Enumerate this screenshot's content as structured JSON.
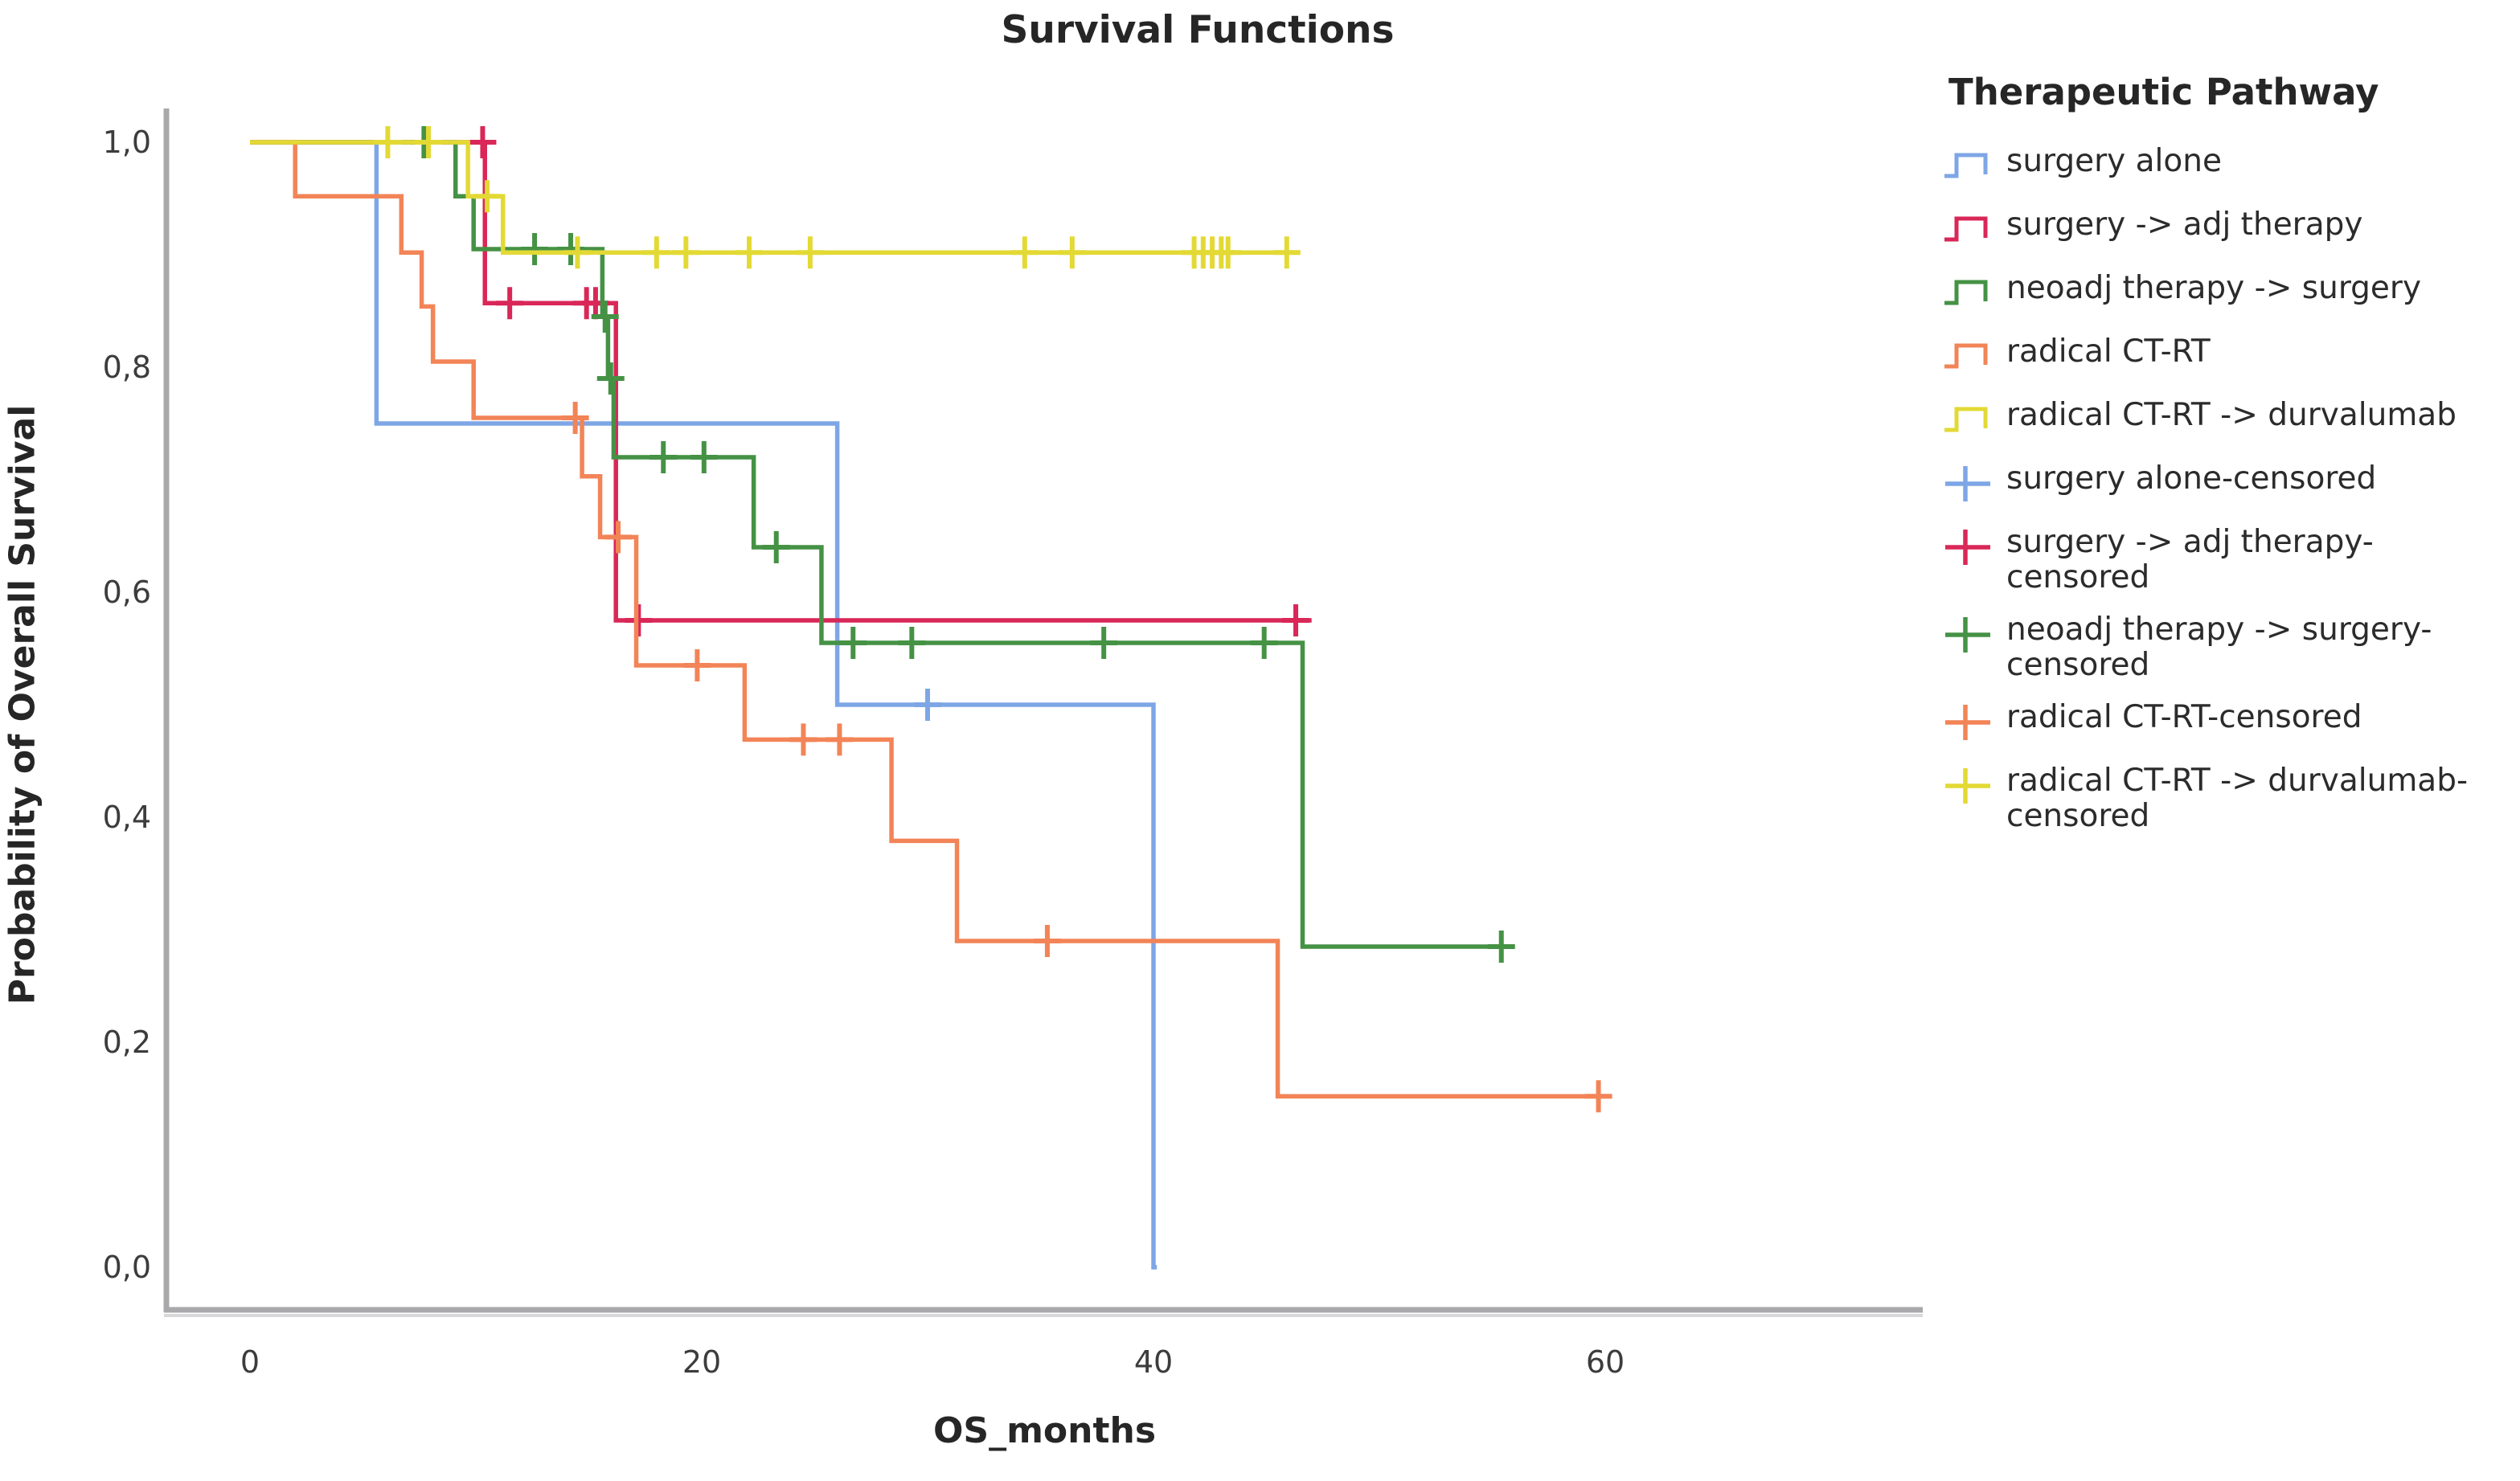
{
  "title": "Survival Functions",
  "chart_data": {
    "type": "line",
    "subtype": "kaplan-meier-step",
    "title": "Survival Functions",
    "xlabel": "OS_months",
    "ylabel": "Probability of Overall Survival",
    "x_ticks": [
      0,
      20,
      40,
      60
    ],
    "xlim": [
      -3.7,
      74
    ],
    "ylim": [
      -0.04,
      1.05
    ],
    "y_ticks": [
      1.0,
      0.8,
      0.6,
      0.4,
      0.2,
      0.0
    ],
    "y_tick_labels": [
      "1,0",
      "0,8",
      "0,6",
      "0,4",
      "0,2",
      "0,0"
    ],
    "grid": false,
    "legend_position": "right",
    "series": [
      {
        "name": "surgery alone",
        "color": "#7EA6E6",
        "steps": [
          [
            0,
            1.0
          ],
          [
            5.6,
            0.75
          ],
          [
            26.0,
            0.5
          ],
          [
            40.0,
            0.0
          ]
        ],
        "end": 40.15,
        "censors": [
          [
            30.0,
            0.5
          ]
        ]
      },
      {
        "name": "surgery -> adj therapy",
        "color": "#D92758",
        "steps": [
          [
            0,
            1.0
          ],
          [
            10.4,
            0.857
          ],
          [
            16.2,
            0.575
          ]
        ],
        "end": 47.0,
        "censors": [
          [
            10.3,
            1.0
          ],
          [
            11.5,
            0.857
          ],
          [
            14.9,
            0.857
          ],
          [
            15.3,
            0.857
          ],
          [
            17.2,
            0.575
          ],
          [
            46.3,
            0.575
          ]
        ]
      },
      {
        "name": "neoadj therapy -> surgery",
        "color": "#459245",
        "steps": [
          [
            0,
            1.0
          ],
          [
            9.1,
            0.952
          ],
          [
            9.9,
            0.905
          ],
          [
            15.6,
            0.845
          ],
          [
            15.85,
            0.79
          ],
          [
            16.1,
            0.72
          ],
          [
            22.3,
            0.64
          ],
          [
            25.3,
            0.555
          ],
          [
            46.6,
            0.285
          ]
        ],
        "end": 55.7,
        "censors": [
          [
            7.7,
            1.0
          ],
          [
            12.6,
            0.905
          ],
          [
            14.2,
            0.905
          ],
          [
            15.72,
            0.845
          ],
          [
            15.97,
            0.79
          ],
          [
            18.3,
            0.72
          ],
          [
            20.1,
            0.72
          ],
          [
            23.3,
            0.64
          ],
          [
            26.7,
            0.555
          ],
          [
            29.3,
            0.555
          ],
          [
            37.8,
            0.555
          ],
          [
            44.9,
            0.555
          ],
          [
            55.4,
            0.285
          ]
        ]
      },
      {
        "name": "radical CT-RT",
        "color": "#F28457",
        "steps": [
          [
            0,
            1.0
          ],
          [
            2.0,
            0.952
          ],
          [
            6.7,
            0.902
          ],
          [
            7.6,
            0.854
          ],
          [
            8.1,
            0.805
          ],
          [
            9.9,
            0.755
          ],
          [
            14.7,
            0.703
          ],
          [
            15.5,
            0.649
          ],
          [
            17.1,
            0.535
          ],
          [
            21.9,
            0.469
          ],
          [
            28.4,
            0.379
          ],
          [
            31.3,
            0.29
          ],
          [
            45.5,
            0.152
          ]
        ],
        "end": 60.2,
        "censors": [
          [
            14.4,
            0.755
          ],
          [
            16.3,
            0.649
          ],
          [
            19.8,
            0.535
          ],
          [
            24.5,
            0.469
          ],
          [
            26.1,
            0.469
          ],
          [
            35.3,
            0.29
          ],
          [
            59.7,
            0.152
          ]
        ]
      },
      {
        "name": "radical CT-RT -> durvalumab",
        "color": "#E3D935",
        "steps": [
          [
            0,
            1.0
          ],
          [
            9.65,
            0.952
          ],
          [
            11.2,
            0.902
          ]
        ],
        "end": 46.3,
        "censors": [
          [
            6.1,
            1.0
          ],
          [
            7.9,
            1.0
          ],
          [
            10.5,
            0.952
          ],
          [
            14.5,
            0.902
          ],
          [
            18.0,
            0.902
          ],
          [
            19.3,
            0.902
          ],
          [
            22.1,
            0.902
          ],
          [
            24.8,
            0.902
          ],
          [
            34.3,
            0.902
          ],
          [
            36.4,
            0.902
          ],
          [
            41.8,
            0.902
          ],
          [
            42.2,
            0.902
          ],
          [
            42.6,
            0.902
          ],
          [
            43.0,
            0.902
          ],
          [
            43.3,
            0.902
          ],
          [
            45.9,
            0.902
          ]
        ]
      }
    ]
  },
  "legend": {
    "title": "Therapeutic Pathway",
    "items": [
      {
        "label": "surgery alone",
        "type": "step",
        "series_index": 0
      },
      {
        "label": "surgery -> adj therapy",
        "type": "step",
        "series_index": 1
      },
      {
        "label": "neoadj therapy -> surgery",
        "type": "step",
        "series_index": 2
      },
      {
        "label": "radical CT-RT",
        "type": "step",
        "series_index": 3
      },
      {
        "label": "radical CT-RT -> durvalumab",
        "type": "step",
        "series_index": 4
      },
      {
        "label": "surgery alone-censored",
        "type": "plus",
        "series_index": 0
      },
      {
        "label": "surgery -> adj therapy-censored",
        "type": "plus",
        "series_index": 1
      },
      {
        "label": "neoadj therapy -> surgery-censored",
        "type": "plus",
        "series_index": 2
      },
      {
        "label": "radical CT-RT-censored",
        "type": "plus",
        "series_index": 3
      },
      {
        "label": "radical CT-RT -> durvalumab-censored",
        "type": "plus",
        "series_index": 4
      }
    ]
  },
  "axis_color": "#A9A9AB"
}
